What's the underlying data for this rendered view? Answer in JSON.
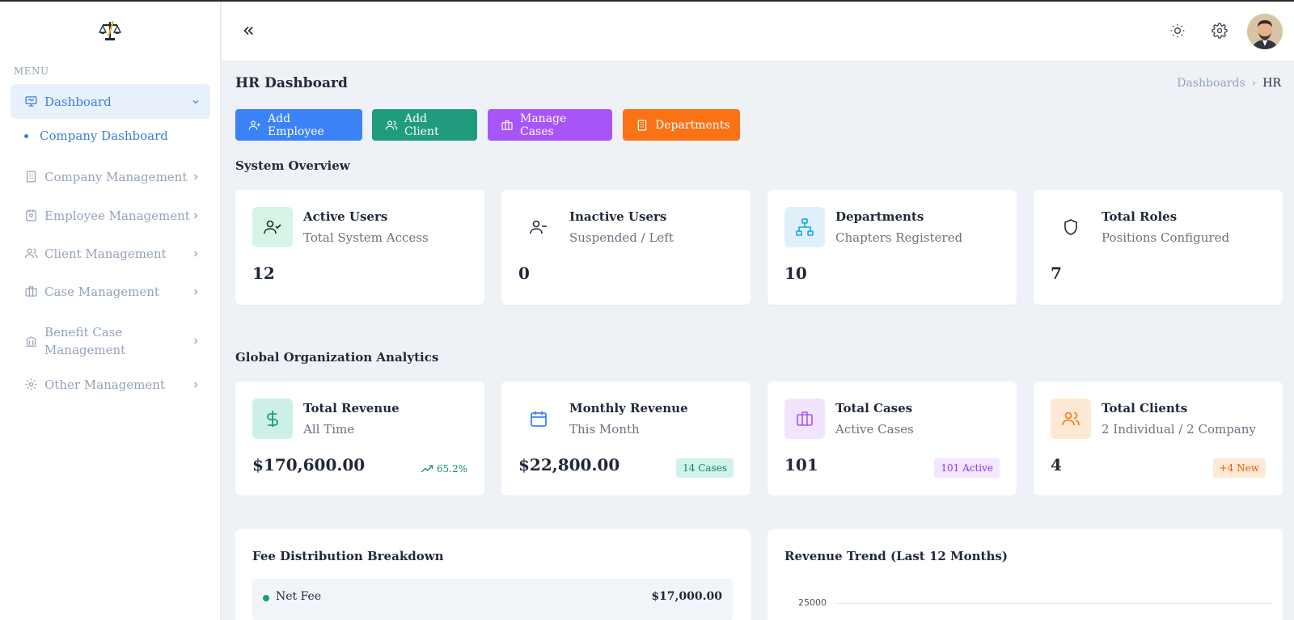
{
  "sidebar": {
    "menu_title": "MENU",
    "items": [
      {
        "label": "Dashboard"
      },
      {
        "label": "Company Management"
      },
      {
        "label": "Employee Management"
      },
      {
        "label": "Client Management"
      },
      {
        "label": "Case Management"
      },
      {
        "label": "Benefit Case Management"
      },
      {
        "label": "Other Management"
      }
    ],
    "sub_item": "Company Dashboard"
  },
  "header": {
    "icons": [
      "collapse-icon",
      "sun-icon",
      "gear-icon",
      "avatar"
    ]
  },
  "page": {
    "title": "HR Dashboard",
    "breadcrumb": {
      "parent": "Dashboards",
      "separator": "›",
      "current": "HR"
    }
  },
  "actions": {
    "add_employee": "Add Employee",
    "add_client": "Add Client",
    "manage_cases": "Manage Cases",
    "departments": "Departments"
  },
  "system_overview": {
    "title": "System Overview",
    "cards": [
      {
        "title": "Active Users",
        "subtitle": "Total System Access",
        "value": "12"
      },
      {
        "title": "Inactive Users",
        "subtitle": "Suspended / Left",
        "value": "0"
      },
      {
        "title": "Departments",
        "subtitle": "Chapters Registered",
        "value": "10"
      },
      {
        "title": "Total Roles",
        "subtitle": "Positions Configured",
        "value": "7"
      }
    ]
  },
  "analytics": {
    "title": "Global Organization Analytics",
    "cards": [
      {
        "title": "Total Revenue",
        "subtitle": "All Time",
        "value": "$170,600.00",
        "trend": "65.2%"
      },
      {
        "title": "Monthly Revenue",
        "subtitle": "This Month",
        "value": "$22,800.00",
        "badge": "14 Cases"
      },
      {
        "title": "Total Cases",
        "subtitle": "Active Cases",
        "value": "101",
        "badge": "101 Active"
      },
      {
        "title": "Total Clients",
        "subtitle": "2 Individual / 2 Company",
        "value": "4",
        "badge": "+4 New"
      }
    ]
  },
  "fee_distribution": {
    "title": "Fee Distribution Breakdown",
    "rows": [
      {
        "label": "Net Fee",
        "value": "$17,000.00"
      }
    ]
  },
  "revenue_trend": {
    "title": "Revenue Trend (Last 12 Months)",
    "y_tick": "25000"
  },
  "colors": {
    "primary": "#3b82f6",
    "teal": "#219b7e",
    "purple": "#a855f7",
    "orange": "#f97316"
  }
}
